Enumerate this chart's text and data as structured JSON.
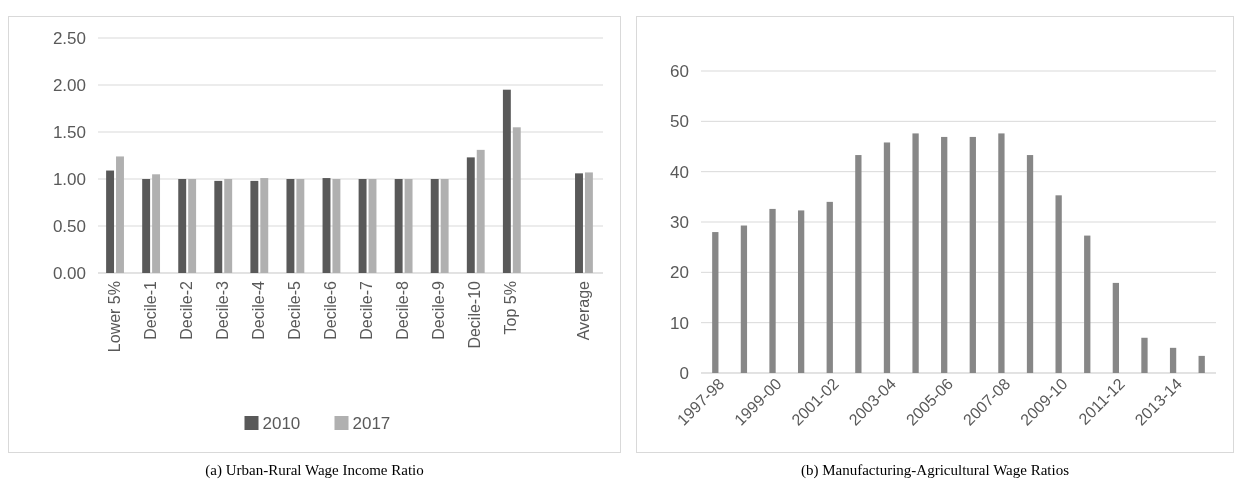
{
  "chart_data": [
    {
      "type": "bar",
      "categories": [
        "Lower 5%",
        "Decile-1",
        "Decile-2",
        "Decile-3",
        "Decile-4",
        "Decile-5",
        "Decile-6",
        "Decile-7",
        "Decile-8",
        "Decile-9",
        "Decile-10",
        "Top 5%",
        null,
        "Average"
      ],
      "series": [
        {
          "name": "2010",
          "color": "#595959",
          "values": [
            1.09,
            1.0,
            1.0,
            0.98,
            0.98,
            1.0,
            1.01,
            1.0,
            1.0,
            1.0,
            1.23,
            1.95,
            null,
            1.06
          ]
        },
        {
          "name": "2017",
          "color": "#b0b0b0",
          "values": [
            1.24,
            1.05,
            1.0,
            1.0,
            1.01,
            1.0,
            1.0,
            1.0,
            1.0,
            1.0,
            1.31,
            1.55,
            null,
            1.07
          ]
        }
      ],
      "ylim": [
        0,
        2.5
      ],
      "yticks": [
        {
          "value": 0,
          "label": "0.00"
        },
        {
          "value": 0.5,
          "label": "0.50"
        },
        {
          "value": 1,
          "label": "1.00"
        },
        {
          "value": 1.5,
          "label": "1.50"
        },
        {
          "value": 2,
          "label": "2.00"
        },
        {
          "value": 2.5,
          "label": "2.50"
        }
      ],
      "grid": "y",
      "legend": "bottom",
      "annotations": [
        "(a) Urban-Rural Wage Income Ratio"
      ]
    },
    {
      "type": "bar",
      "categories": [
        "1997-98",
        null,
        "1999-00",
        null,
        "2001-02",
        null,
        "2003-04",
        null,
        "2005-06",
        null,
        "2007-08",
        null,
        "2009-10",
        null,
        "2011-12",
        null,
        "2013-14",
        null
      ],
      "series": [
        {
          "color": "#878787",
          "values": [
            28,
            29.3,
            32.6,
            32.3,
            34,
            43.3,
            45.8,
            47.6,
            46.9,
            46.9,
            47.6,
            43.3,
            35.3,
            27.3,
            17.9,
            7,
            5,
            3.4
          ]
        }
      ],
      "ylim": [
        0,
        60
      ],
      "yticks": [
        0,
        10,
        20,
        30,
        40,
        50,
        60
      ],
      "grid": "y",
      "annotations": [
        "(b) Manufacturing-Agricultural Wage Ratios"
      ]
    }
  ]
}
